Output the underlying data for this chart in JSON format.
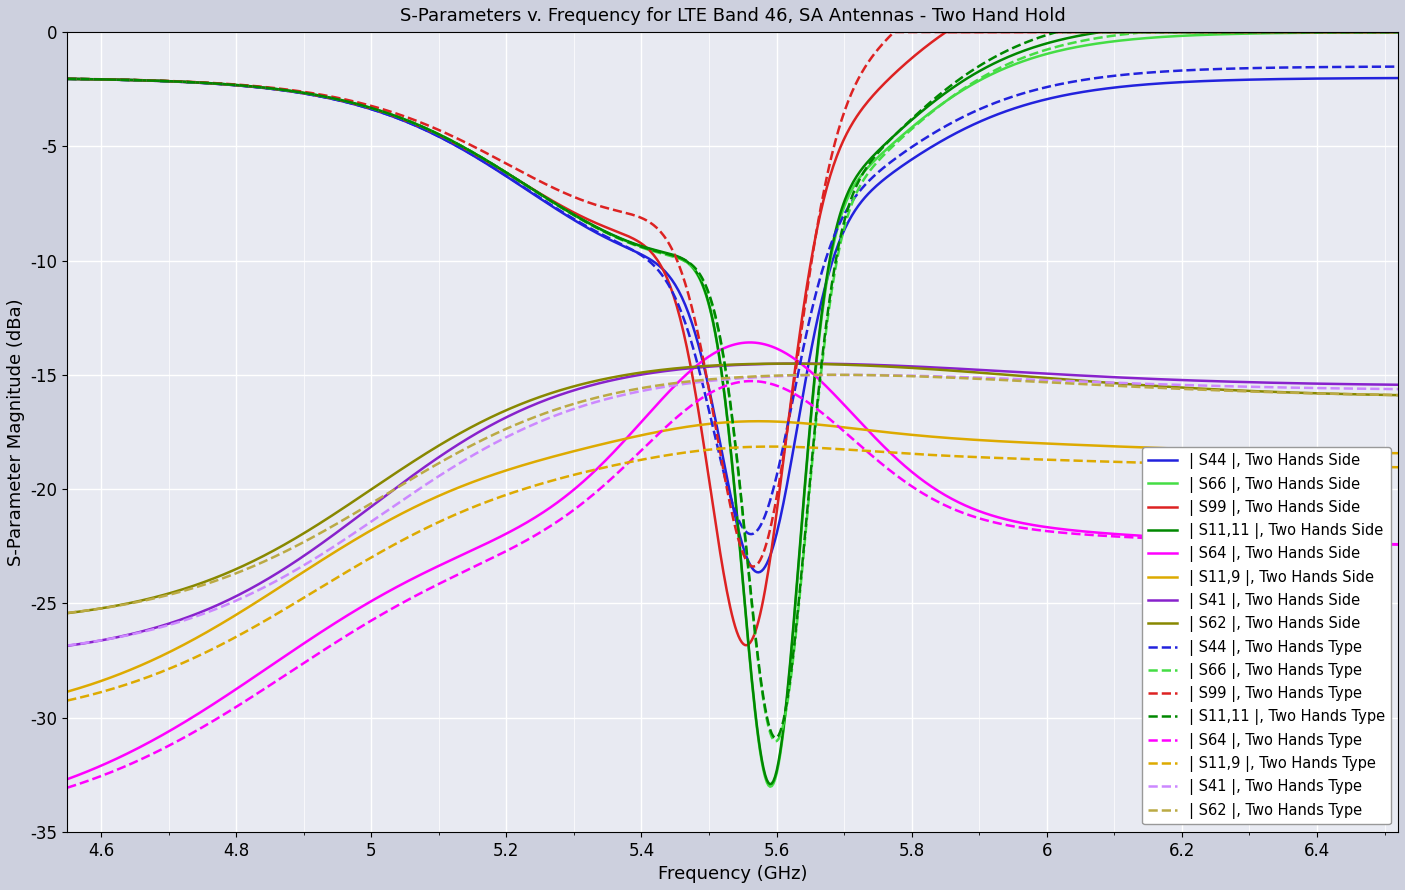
{
  "title": "S-Parameters v. Frequency for LTE Band 46, SA Antennas - Two Hand Hold",
  "xlabel": "Frequency (GHz)",
  "ylabel": "S-Parameter Magnitude (dBa)",
  "xlim": [
    4.55,
    6.52
  ],
  "ylim": [
    -35,
    0
  ],
  "xticks": [
    4.6,
    4.8,
    5.0,
    5.2,
    5.4,
    5.6,
    5.8,
    6.0,
    6.2,
    6.4
  ],
  "yticks": [
    0,
    -5,
    -10,
    -15,
    -20,
    -25,
    -30,
    -35
  ],
  "bg_color": "#eaecf4",
  "grid_color": "#d0d4e0",
  "series": [
    {
      "name": "| S44 |, Two Hands Side",
      "color": "#2222dd",
      "ls": "solid",
      "lw": 1.8,
      "key": "S44_side"
    },
    {
      "name": "| S66 |, Two Hands Side",
      "color": "#44dd44",
      "ls": "solid",
      "lw": 1.8,
      "key": "S66_side"
    },
    {
      "name": "| S99 |, Two Hands Side",
      "color": "#dd2222",
      "ls": "solid",
      "lw": 1.8,
      "key": "S99_side"
    },
    {
      "name": "| S11,11 |, Two Hands Side",
      "color": "#008800",
      "ls": "solid",
      "lw": 1.8,
      "key": "S1111_side"
    },
    {
      "name": "| S64 |, Two Hands Side",
      "color": "#ff00ff",
      "ls": "solid",
      "lw": 1.8,
      "key": "S64_side"
    },
    {
      "name": "| S11,9 |, Two Hands Side",
      "color": "#ddaa00",
      "ls": "solid",
      "lw": 1.8,
      "key": "S119_side"
    },
    {
      "name": "| S41 |, Two Hands Side",
      "color": "#8822cc",
      "ls": "solid",
      "lw": 1.8,
      "key": "S41_side"
    },
    {
      "name": "| S62 |, Two Hands Side",
      "color": "#888800",
      "ls": "solid",
      "lw": 1.8,
      "key": "S62_side"
    },
    {
      "name": "| S44 |, Two Hands Type",
      "color": "#2222dd",
      "ls": "dashed",
      "lw": 1.8,
      "key": "S44_type"
    },
    {
      "name": "| S66 |, Two Hands Type",
      "color": "#44dd44",
      "ls": "dashed",
      "lw": 1.8,
      "key": "S66_type"
    },
    {
      "name": "| S99 |, Two Hands Type",
      "color": "#dd2222",
      "ls": "dashed",
      "lw": 1.8,
      "key": "S99_type"
    },
    {
      "name": "| S11,11 |, Two Hands Type",
      "color": "#008800",
      "ls": "dashed",
      "lw": 1.8,
      "key": "S1111_type"
    },
    {
      "name": "| S64 |, Two Hands Type",
      "color": "#ff00ff",
      "ls": "dashed",
      "lw": 1.8,
      "key": "S64_type"
    },
    {
      "name": "| S11,9 |, Two Hands Type",
      "color": "#ddaa00",
      "ls": "dashed",
      "lw": 1.8,
      "key": "S119_type"
    },
    {
      "name": "| S41 |, Two Hands Type",
      "color": "#cc88ff",
      "ls": "dashed",
      "lw": 1.8,
      "key": "S41_type"
    },
    {
      "name": "| S62 |, Two Hands Type",
      "color": "#bbaa44",
      "ls": "dashed",
      "lw": 1.8,
      "key": "S62_type"
    }
  ]
}
